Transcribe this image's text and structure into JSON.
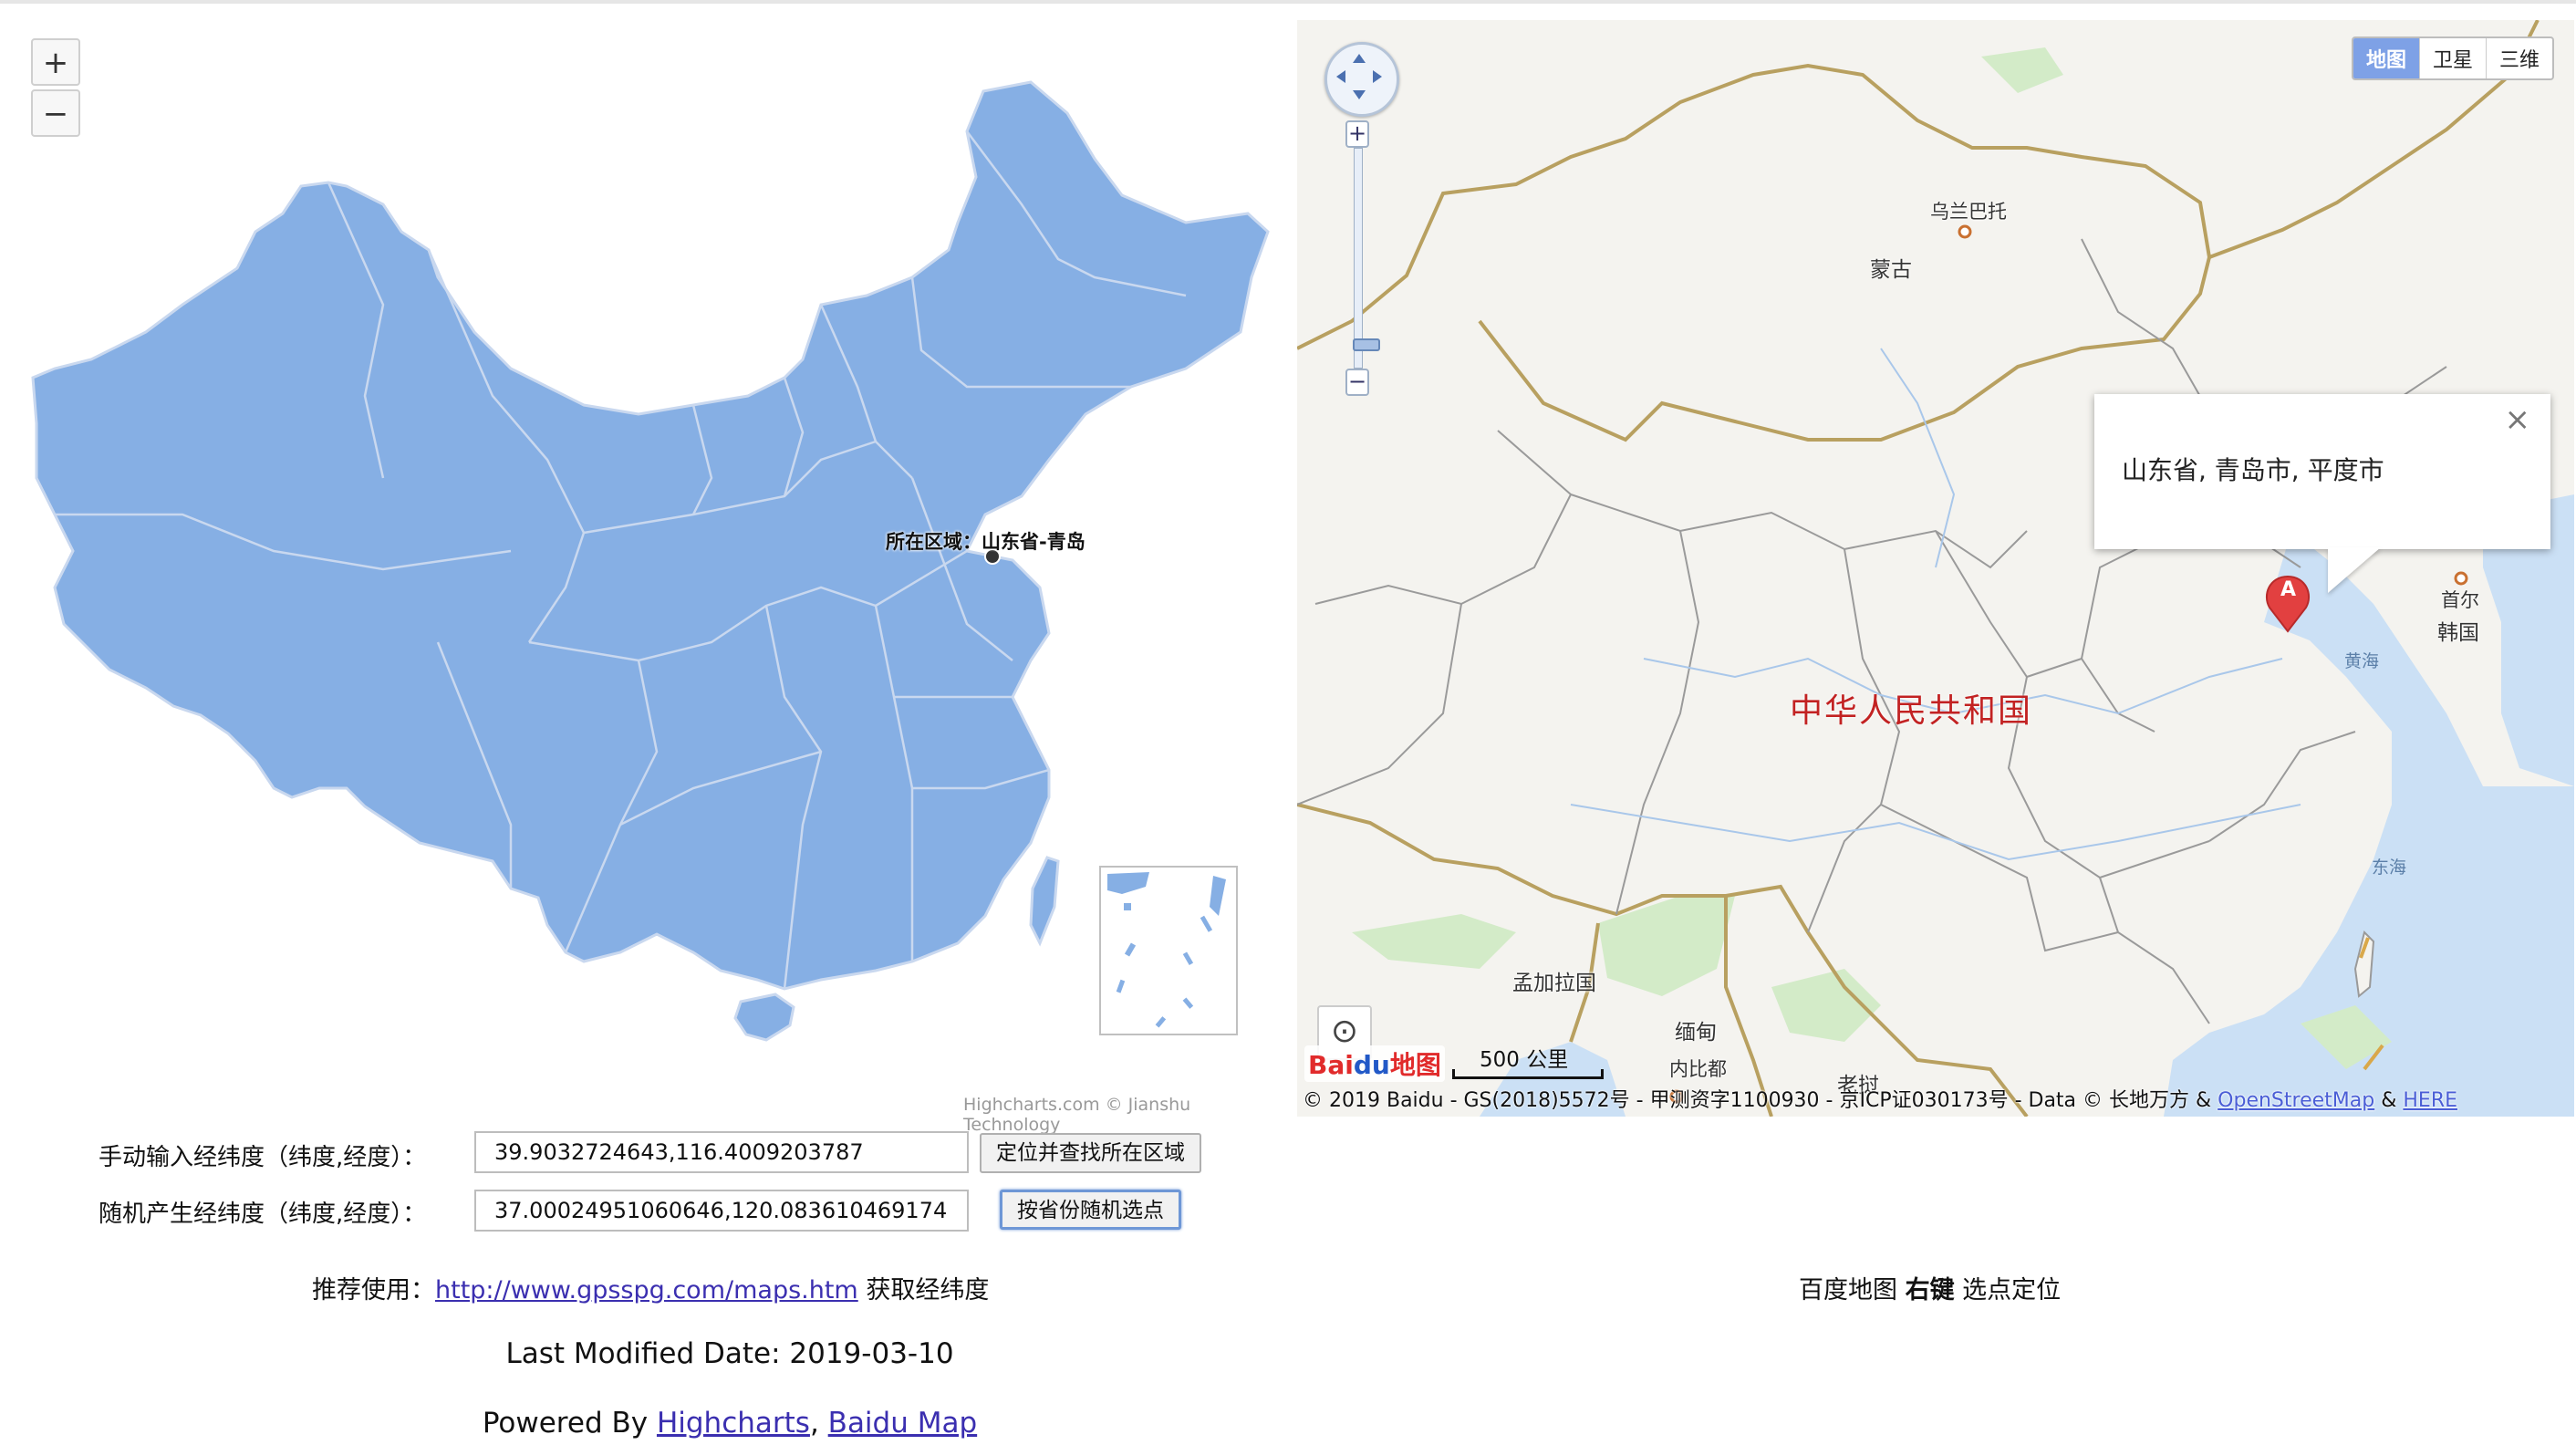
{
  "left_map": {
    "zoom_in": "+",
    "zoom_out": "−",
    "marker_label": "所在区域：山东省-青岛",
    "credit": "Highcharts.com © Jianshu Technology",
    "colors": {
      "fill": "#86afe4",
      "border": "#c9d8ef"
    }
  },
  "right_map": {
    "map_types": [
      "地图",
      "卫星",
      "三维"
    ],
    "active_map_type": "地图",
    "info_window": {
      "text": "山东省, 青岛市, 平度市",
      "close": "×"
    },
    "marker_letter": "A",
    "labels": {
      "ulaanbaatar": "乌兰巴托",
      "mongolia": "蒙古",
      "china": "中华人民共和国",
      "seoul": "首尔",
      "korea": "韩国",
      "yellow_sea": "黄海",
      "east_sea": "东海",
      "bangladesh": "孟加拉国",
      "myanmar": "缅甸",
      "naypyidaw": "内比都",
      "laos": "老挝"
    },
    "logo_text": "Bai",
    "logo_du": "du",
    "logo_map": "地图",
    "scale": "500 公里",
    "copyright_prefix": "© 2019 Baidu - GS(2018)5572号 - 甲测资字1100930 - 京ICP证030173号 - Data © 长地万方 & ",
    "copyright_link1": "OpenStreetMap",
    "copyright_amp": " & ",
    "copyright_link2": "HERE",
    "zoom_plus": "+",
    "zoom_minus": "−"
  },
  "form": {
    "manual_label": "手动输入经纬度（纬度,经度）：",
    "manual_value": "39.9032724643,116.4009203787",
    "locate_button": "定位并查找所在区域",
    "random_label": "随机产生经纬度（纬度,经度）：",
    "random_value": "37.00024951060646,120.08361046917439",
    "random_button": "按省份随机选点"
  },
  "recommend": {
    "prefix": "推荐使用：",
    "link": "http://www.gpsspg.com/maps.htm",
    "suffix": " 获取经纬度"
  },
  "baidu_tip": {
    "prefix": "百度地图 ",
    "bold": "右键",
    "suffix": " 选点定位"
  },
  "footer": {
    "modified": "Last Modified Date: 2019-03-10",
    "powered_prefix": "Powered By ",
    "link1": "Highcharts",
    "sep": ", ",
    "link2": "Baidu Map"
  }
}
